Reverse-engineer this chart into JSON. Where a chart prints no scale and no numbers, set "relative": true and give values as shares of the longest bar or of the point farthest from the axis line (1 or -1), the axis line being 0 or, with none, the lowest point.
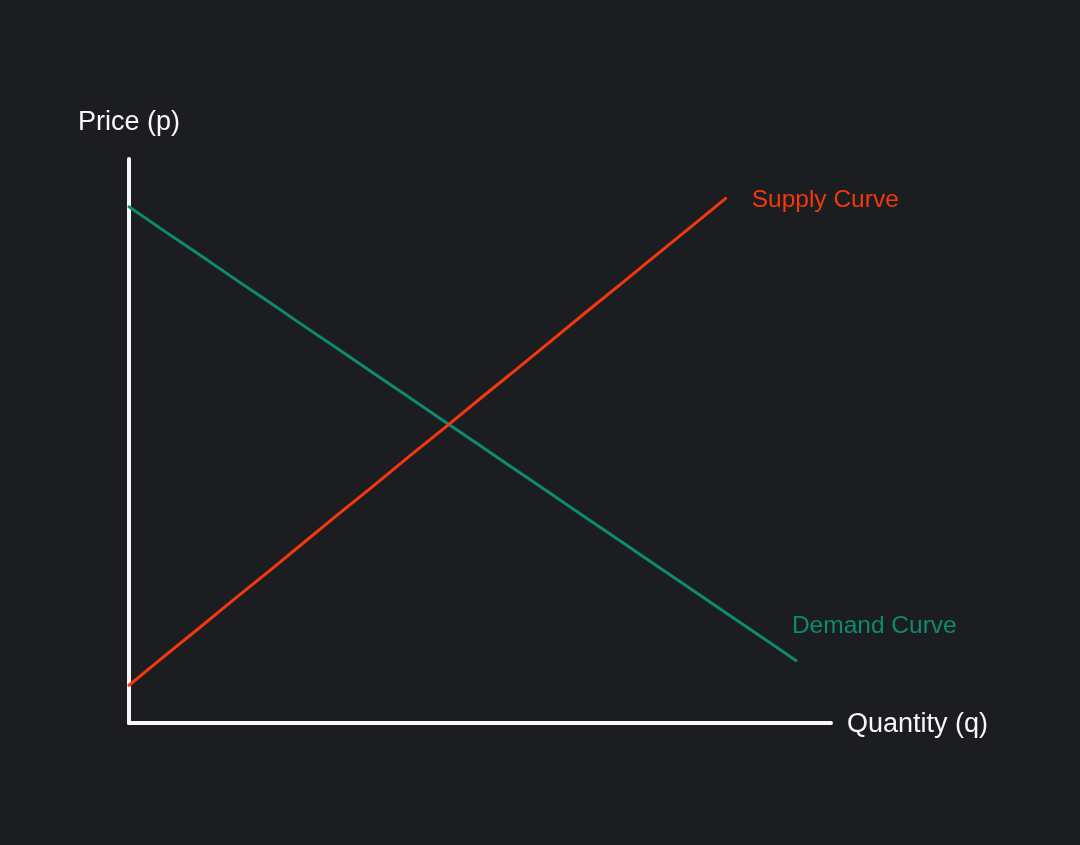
{
  "chart_data": {
    "type": "line",
    "relative": true,
    "xlabel": "Quantity (q)",
    "ylabel": "Price (p)",
    "categories": [
      null,
      null,
      null,
      null,
      null,
      null,
      null,
      null,
      null,
      null,
      null,
      null,
      null,
      null,
      null,
      null,
      null,
      null,
      null,
      null,
      null
    ],
    "series": [
      {
        "name": "Demand Curve",
        "color": "#0e8a6e",
        "values": [
          0.984,
          0.938,
          0.893,
          0.847,
          0.802,
          0.756,
          0.711,
          0.665,
          0.62,
          0.574,
          0.529,
          0.483,
          0.438,
          0.392,
          0.347,
          0.301,
          0.256,
          0.21,
          0.165,
          0.119,
          null
        ]
      },
      {
        "name": "Supply Curve",
        "color": "#f2380c",
        "values": [
          0.072,
          0.127,
          0.181,
          0.236,
          0.29,
          0.345,
          0.4,
          0.454,
          0.509,
          0.563,
          0.618,
          0.672,
          0.727,
          0.782,
          0.836,
          0.891,
          0.945,
          1.0,
          null,
          null,
          null
        ]
      }
    ],
    "marker": "none",
    "line_style": "solid",
    "legend": false,
    "grid": false
  }
}
